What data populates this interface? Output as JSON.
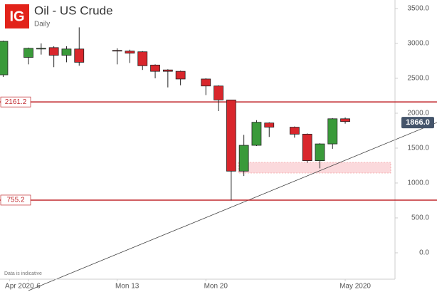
{
  "chart_data": {
    "type": "candlestick",
    "logo": "IG",
    "title": "Oil - US Crude",
    "subtitle": "Daily",
    "note": "Data is indicative",
    "x": [
      4,
      6,
      7,
      8,
      9,
      10,
      13,
      14,
      15,
      16,
      17,
      18,
      20,
      21,
      22,
      23,
      24,
      25,
      27,
      28,
      29,
      30,
      31
    ],
    "open": [
      2550,
      2800,
      2920,
      2940,
      2830,
      2920,
      2900,
      2890,
      2880,
      2690,
      2620,
      2600,
      2490,
      2390,
      2190,
      1170,
      1540,
      1860,
      1800,
      1700,
      1320,
      1560,
      1920
    ],
    "high": [
      3040,
      2940,
      3000,
      2960,
      2960,
      3230,
      2930,
      2910,
      2890,
      2700,
      2630,
      2610,
      2500,
      2400,
      2190,
      1690,
      1900,
      1870,
      1810,
      1710,
      1570,
      1930,
      1940
    ],
    "low": [
      2520,
      2700,
      2840,
      2660,
      2730,
      2680,
      2700,
      2720,
      2620,
      2500,
      2370,
      2400,
      2260,
      2030,
      750,
      1100,
      1530,
      1660,
      1650,
      1290,
      1210,
      1490,
      1850
    ],
    "close": [
      3030,
      2930,
      2930,
      2830,
      2920,
      2730,
      2890,
      2860,
      2680,
      2600,
      2600,
      2490,
      2390,
      2190,
      1170,
      1540,
      1870,
      1800,
      1700,
      1320,
      1560,
      1920,
      1880
    ],
    "up_color": "#3a9a3a",
    "down_color": "#d9262c",
    "xlim": [
      3.75,
      34.93
    ],
    "ylim": [
      -378,
      3622
    ],
    "xticks": [
      {
        "value": 4.5,
        "label": "Apr 2020"
      },
      6,
      {
        "value": 13,
        "label": "Mon 13"
      },
      {
        "value": 20,
        "label": "Mon 20"
      },
      {
        "value": 31,
        "label": "May 2020"
      }
    ],
    "yticks": [
      {
        "value": 0,
        "label": "0.0"
      },
      {
        "value": 500,
        "label": "500.0"
      },
      {
        "value": 1000,
        "label": "1000.0"
      },
      {
        "value": 1500,
        "label": "1500.0"
      },
      {
        "value": 2000,
        "label": "2000.0"
      },
      {
        "value": 2500,
        "label": "2500.0"
      },
      {
        "value": 3000,
        "label": "3000.0"
      },
      {
        "value": 3500,
        "label": "3500.0"
      }
    ],
    "levels": [
      {
        "value": 2161.2,
        "label": "2161.2"
      },
      {
        "value": 755.2,
        "label": "755.2"
      }
    ],
    "last_price": {
      "value": 1866.0,
      "label": "1866.0"
    }
  }
}
